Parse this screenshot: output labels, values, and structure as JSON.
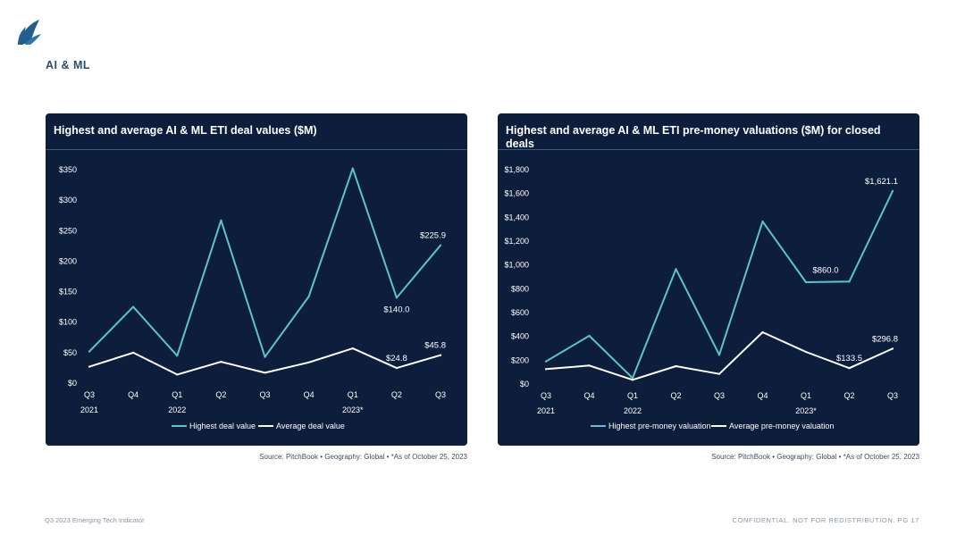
{
  "section_title": "AI & ML",
  "colors": {
    "panel_bg": "#0c1e3c",
    "series_highest": "#5dc3c8",
    "series_average": "#ffffff",
    "logo": "#1f5e8f"
  },
  "chart_data": [
    {
      "type": "line",
      "title": "Highest and average AI & ML ETI deal values ($M)",
      "categories": [
        "Q3",
        "Q4",
        "Q1",
        "Q2",
        "Q3",
        "Q4",
        "Q1",
        "Q2",
        "Q3"
      ],
      "year_labels": [
        "2021",
        "",
        "2022",
        "",
        "",
        "",
        "2023*",
        "",
        ""
      ],
      "ylim": [
        0,
        350
      ],
      "yticks": [
        0,
        50,
        100,
        150,
        200,
        250,
        300,
        350
      ],
      "ytick_labels": [
        "$0",
        "$50",
        "$100",
        "$150",
        "$200",
        "$250",
        "$300",
        "$350"
      ],
      "series": [
        {
          "name": "Highest deal value",
          "color": "#5dc3c8",
          "values": [
            52,
            125,
            45,
            267,
            43,
            142,
            352,
            140.0,
            225.9
          ]
        },
        {
          "name": "Average deal value",
          "color": "#ffffff",
          "values": [
            27,
            50,
            14,
            35,
            17,
            34,
            57,
            24.8,
            45.8
          ]
        }
      ],
      "annotations": [
        {
          "series": 0,
          "index": 7,
          "text": "$140.0",
          "pos": "below"
        },
        {
          "series": 0,
          "index": 8,
          "text": "$225.9",
          "pos": "above"
        },
        {
          "series": 1,
          "index": 7,
          "text": "$24.8",
          "pos": "above"
        },
        {
          "series": 1,
          "index": 8,
          "text": "$45.8",
          "pos": "above"
        }
      ]
    },
    {
      "type": "line",
      "title": "Highest and average AI & ML ETI pre-money valuations ($M) for closed deals",
      "categories": [
        "Q3",
        "Q4",
        "Q1",
        "Q2",
        "Q3",
        "Q4",
        "Q1",
        "Q2",
        "Q3"
      ],
      "year_labels": [
        "2021",
        "",
        "2022",
        "",
        "",
        "",
        "2023*",
        "",
        ""
      ],
      "ylim": [
        0,
        1800
      ],
      "yticks": [
        0,
        200,
        400,
        600,
        800,
        1000,
        1200,
        1400,
        1600,
        1800
      ],
      "ytick_labels": [
        "$0",
        "$200",
        "$400",
        "$600",
        "$800",
        "$1,000",
        "$1,200",
        "$1,400",
        "$1,600",
        "$1,800"
      ],
      "series": [
        {
          "name": "Highest pre-money valuation",
          "color": "#5dc3c8",
          "values": [
            190,
            405,
            50,
            965,
            245,
            1365,
            855,
            860.0,
            1621.1
          ]
        },
        {
          "name": "Average pre-money valuation",
          "color": "#ffffff",
          "values": [
            125,
            155,
            35,
            150,
            85,
            435,
            270,
            133.5,
            296.8
          ]
        }
      ],
      "annotations": [
        {
          "series": 0,
          "index": 7,
          "text": "$860.0",
          "pos": "above-left"
        },
        {
          "series": 0,
          "index": 8,
          "text": "$1,621.1",
          "pos": "above"
        },
        {
          "series": 1,
          "index": 7,
          "text": "$133.5",
          "pos": "above"
        },
        {
          "series": 1,
          "index": 8,
          "text": "$296.8",
          "pos": "above"
        }
      ]
    }
  ],
  "source_text": "Source: PitchBook  •  Geography: Global  •  *As of October 25, 2023",
  "footer": {
    "left": "Q3 2023 Emerging Tech Indicator",
    "right": "CONFIDENTIAL. NOT FOR REDISTRIBUTION.  PG 17"
  }
}
